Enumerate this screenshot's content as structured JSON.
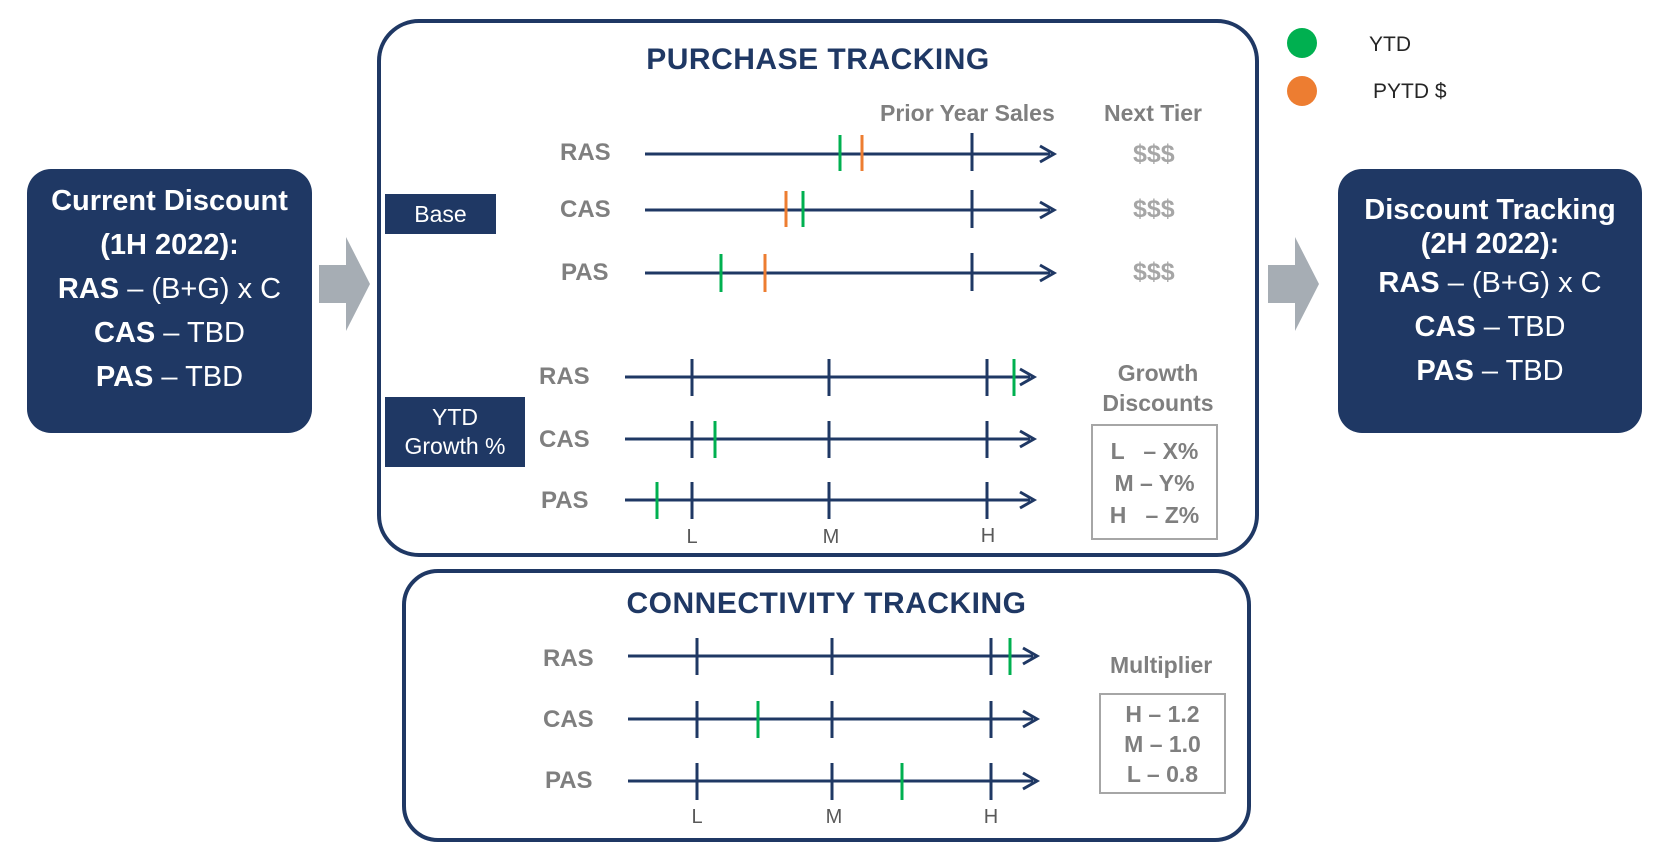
{
  "legend": [
    {
      "label": "YTD",
      "color": "#00b050"
    },
    {
      "label": "PYTD $",
      "color": "#ed7d31"
    }
  ],
  "current_discount": {
    "title_line1": "Current Discount",
    "title_line2": "(1H 2022):",
    "rows": [
      {
        "code": "RAS",
        "text": " – (B+G) x C"
      },
      {
        "code": "CAS",
        "text": " – TBD"
      },
      {
        "code": "PAS",
        "text": " – TBD"
      }
    ]
  },
  "discount_tracking": {
    "title_line1": "Discount Tracking",
    "title_line2": "(2H 2022):",
    "rows": [
      {
        "code": "RAS",
        "text": " – (B+G) x C"
      },
      {
        "code": "CAS",
        "text": " – TBD"
      },
      {
        "code": "PAS",
        "text": " – TBD"
      }
    ]
  },
  "purchase_tracking": {
    "title": "PURCHASE TRACKING",
    "prior_year_sales_label": "Prior Year Sales",
    "next_tier_label": "Next Tier",
    "base_label": "Base",
    "ytd_growth_label_line1": "YTD",
    "ytd_growth_label_line2": "Growth %",
    "base_rows": [
      {
        "label": "RAS",
        "next_tier": "$$$"
      },
      {
        "label": "CAS",
        "next_tier": "$$$"
      },
      {
        "label": "PAS",
        "next_tier": "$$$"
      }
    ],
    "growth_rows": [
      {
        "label": "RAS"
      },
      {
        "label": "CAS"
      },
      {
        "label": "PAS"
      }
    ],
    "growth_ticks": [
      "L",
      "M",
      "H"
    ],
    "growth_discounts_line1": "Growth",
    "growth_discounts_line2": "Discounts",
    "growth_discounts": [
      "L   – X%",
      "M – Y%",
      "H   – Z%"
    ]
  },
  "connectivity_tracking": {
    "title": "CONNECTIVITY TRACKING",
    "rows": [
      {
        "label": "RAS"
      },
      {
        "label": "CAS"
      },
      {
        "label": "PAS"
      }
    ],
    "ticks": [
      "L",
      "M",
      "H"
    ],
    "multiplier_label": "Multiplier",
    "multipliers": [
      "H – 1.2",
      "M – 1.0",
      "L – 0.8"
    ]
  }
}
